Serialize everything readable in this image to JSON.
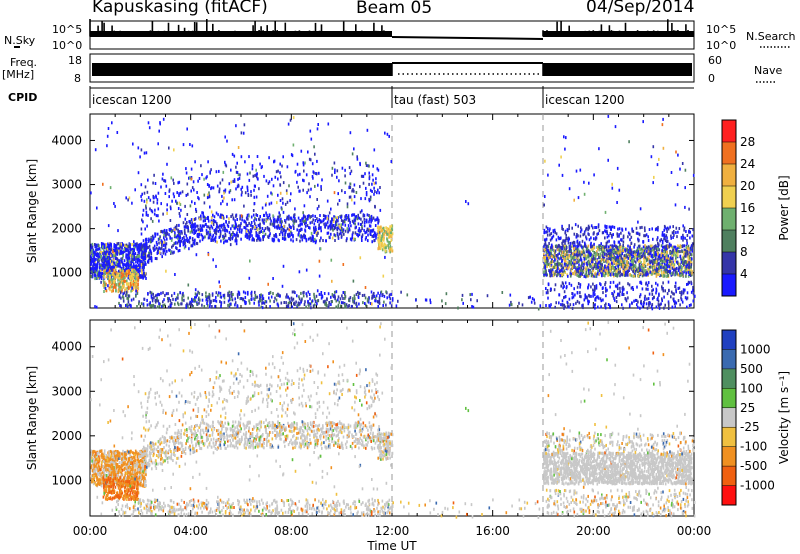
{
  "header": {
    "station": "Kapuskasing (fitACF)",
    "beam": "Beam 05",
    "date": "04/Sep/2014"
  },
  "top_panels": {
    "nsky_label": "N.Sky",
    "nsky_ticks": [
      "10^5",
      "10^0"
    ],
    "nsearch_label": "N.Search",
    "nsearch_ticks": [
      "10^5",
      "10^0"
    ],
    "freq_label": "Freq.",
    "freq_unit": "[MHz]",
    "freq_ticks": [
      "18",
      "8"
    ],
    "nave_label": "Nave",
    "nave_ticks": [
      "60",
      "0"
    ],
    "cpid_label": "CPID",
    "cpid_segments": [
      {
        "name": "icescan 1200",
        "start": "00:00",
        "end": "12:00"
      },
      {
        "name": "tau (fast) 503",
        "start": "12:00",
        "end": "18:00"
      },
      {
        "name": "icescan 1200",
        "start": "18:00",
        "end": "24:00"
      }
    ]
  },
  "chart_data": [
    {
      "type": "heatmap",
      "parameter": "Power",
      "xlabel": "",
      "ylabel": "Slant Range [km]",
      "ylim": [
        200,
        4600
      ],
      "yticks": [
        "4000",
        "3000",
        "2000",
        "1000"
      ],
      "colorbar_label": "Power [dB]",
      "colorbar_ticks": [
        "28",
        "24",
        "20",
        "16",
        "12",
        "8",
        "4"
      ],
      "colors": [
        "#1a1aff",
        "#3535a8",
        "#4f7f5f",
        "#6fb06f",
        "#f0d050",
        "#f0b040",
        "#f07020",
        "#ff2020"
      ],
      "mode_boundaries_hours": [
        12,
        18
      ]
    },
    {
      "type": "heatmap",
      "parameter": "Velocity",
      "xlabel": "Time UT",
      "ylabel": "Slant Range [km]",
      "ylim": [
        200,
        4600
      ],
      "yticks": [
        "4000",
        "3000",
        "2000",
        "1000"
      ],
      "xticks": [
        "00:00",
        "04:00",
        "08:00",
        "12:00",
        "16:00",
        "20:00",
        "00:00"
      ],
      "colorbar_label": "Velocity [m s⁻¹]",
      "colorbar_ticks": [
        "1000",
        "500",
        "100",
        "25",
        "-25",
        "-100",
        "-500",
        "-1000"
      ],
      "colors": [
        "#2040c0",
        "#3a6ab0",
        "#4f8f60",
        "#60c040",
        "#c8c8c8",
        "#f0c040",
        "#f09020",
        "#f06010",
        "#ff1010"
      ],
      "mode_boundaries_hours": [
        12,
        18
      ]
    }
  ]
}
